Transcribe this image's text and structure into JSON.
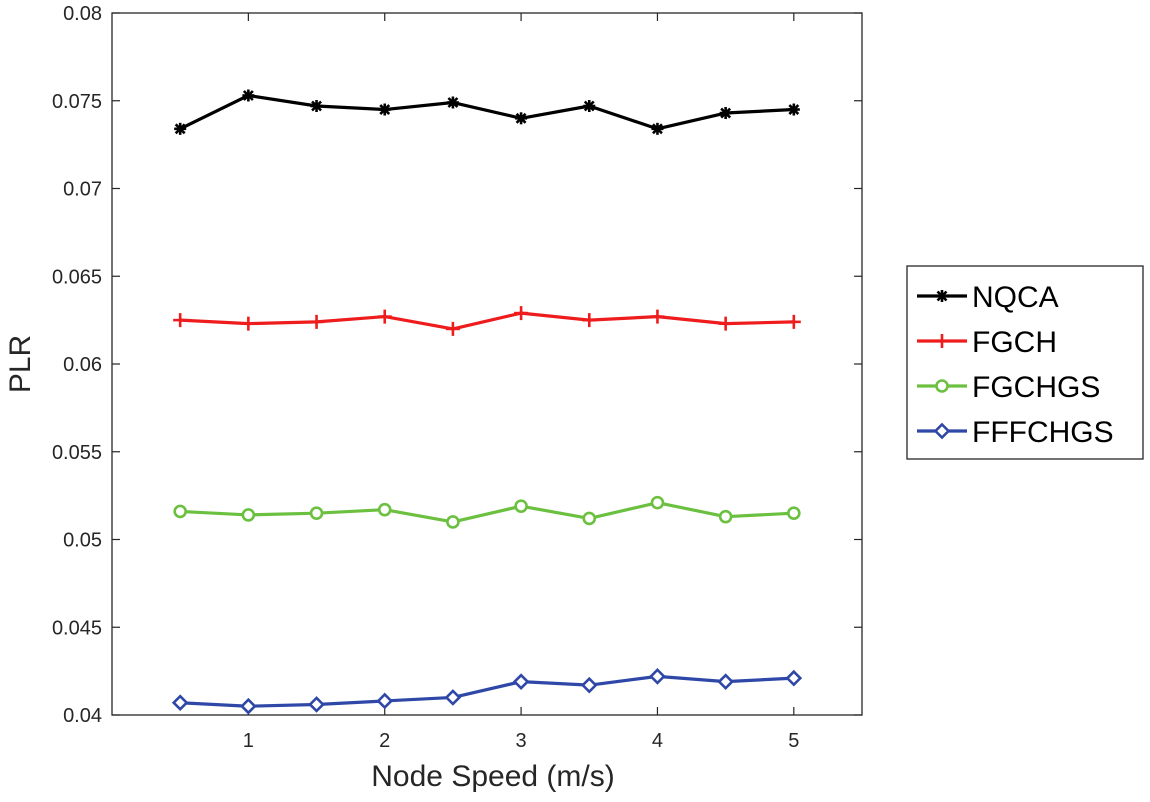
{
  "chart_data": {
    "type": "line",
    "title": "",
    "xlabel": "Node Speed (m/s)",
    "ylabel": "PLR",
    "xlim": [
      0,
      5.5
    ],
    "ylim": [
      0.04,
      0.08
    ],
    "xticks": [
      1,
      2,
      3,
      4,
      5
    ],
    "xtick_labels": [
      "1",
      "2",
      "3",
      "4",
      "5"
    ],
    "yticks": [
      0.04,
      0.045,
      0.05,
      0.055,
      0.06,
      0.065,
      0.07,
      0.075,
      0.08
    ],
    "ytick_labels": [
      "0.04",
      "0.045",
      "0.05",
      "0.055",
      "0.06",
      "0.065",
      "0.07",
      "0.075",
      "0.08"
    ],
    "grid": false,
    "legend_position": "outside-right",
    "x": [
      0.5,
      1,
      1.5,
      2,
      2.5,
      3,
      3.5,
      4,
      4.5,
      5
    ],
    "series": [
      {
        "name": "NQCA",
        "color": "#000000",
        "marker": "asterisk",
        "values": [
          0.0734,
          0.0753,
          0.0747,
          0.0745,
          0.0749,
          0.074,
          0.0747,
          0.0734,
          0.0743,
          0.0745
        ]
      },
      {
        "name": "FGCH",
        "color": "#ee1c1c",
        "marker": "plus",
        "values": [
          0.0625,
          0.0623,
          0.0624,
          0.0627,
          0.062,
          0.0629,
          0.0625,
          0.0627,
          0.0623,
          0.0624
        ]
      },
      {
        "name": "FGCHGS",
        "color": "#6cc040",
        "marker": "circle",
        "values": [
          0.0516,
          0.0514,
          0.0515,
          0.0517,
          0.051,
          0.0519,
          0.0512,
          0.0521,
          0.0513,
          0.0515
        ]
      },
      {
        "name": "FFFCHGS",
        "color": "#2f48a8",
        "marker": "diamond",
        "values": [
          0.0407,
          0.0405,
          0.0406,
          0.0408,
          0.041,
          0.0419,
          0.0417,
          0.0422,
          0.0419,
          0.0421
        ]
      }
    ]
  }
}
